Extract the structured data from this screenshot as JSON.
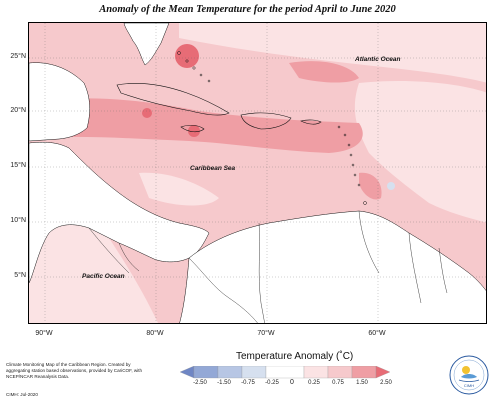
{
  "title": "Anomaly of the Mean Temperature for the period April to June 2020",
  "latitude_labels": [
    "25°N",
    "20°N",
    "15°N",
    "10°N",
    "5°N"
  ],
  "longitude_labels": [
    "90°W",
    "80°W",
    "70°W",
    "60°W"
  ],
  "region_labels": {
    "atlantic": "Atlantic Ocean",
    "caribbean": "Caribbean Sea",
    "pacific": "Pacific Ocean"
  },
  "legend": {
    "title": "Temperature Anomaly (˚C)",
    "ticks": [
      "-2.50",
      "-1.50",
      "-0.75",
      "-0.25",
      "0",
      "0.25",
      "0.75",
      "1.50",
      "2.50"
    ],
    "colors": {
      "neg_strong": "#6f86c4",
      "neg_mid": "#93a8d6",
      "neg_light": "#b7c6e4",
      "neg_faint": "#d6e0ef",
      "neutral": "#ffffff",
      "pos_faint": "#fbe3e4",
      "pos_light": "#f6c9cc",
      "pos_mid": "#ef9ea4",
      "pos_strong": "#e76c76"
    }
  },
  "credits": {
    "text": "Climate Monitoring Map of the Caribbean Region. Created by aggregating station based observations, provided by CariCOF, with NCEP/NCAR Reanalysis Data.",
    "date": "CIMH: Jul-2020"
  },
  "logo": {
    "text": "CIMH",
    "icon": "cimh-logo-icon"
  }
}
